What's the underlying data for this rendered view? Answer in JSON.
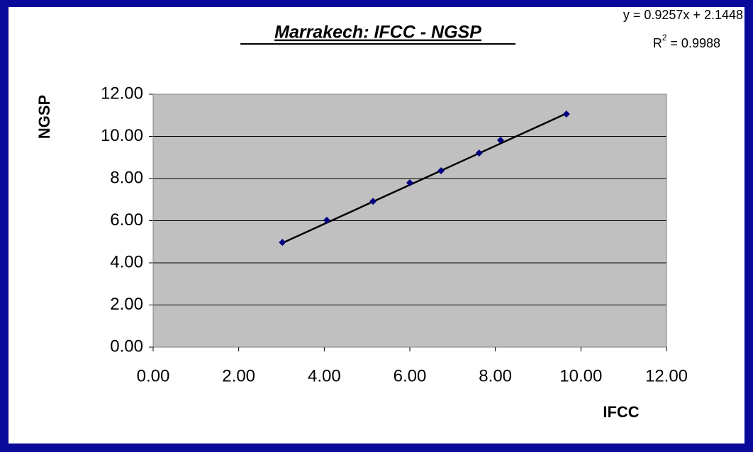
{
  "chart_data": {
    "type": "scatter",
    "title": "Marrakech: IFCC - NGSP",
    "x_label": "IFCC",
    "y_label": "NGSP",
    "x": [
      3.02,
      4.06,
      5.14,
      6.0,
      6.73,
      7.62,
      8.12,
      9.66
    ],
    "series": [
      {
        "color": "#000080",
        "values": [
          4.97,
          6.02,
          6.92,
          7.8,
          8.37,
          9.21,
          9.82,
          11.06
        ]
      }
    ],
    "trendline": {
      "slope": 0.9257,
      "intercept": 2.1448,
      "color": "#000000",
      "equation": "y = 0.9257x + 2.1448",
      "r2": {
        "prefix": "R",
        "sup": "2",
        "rest": " = 0.9988"
      }
    },
    "xlim": [
      0,
      12
    ],
    "ylim": [
      0,
      12
    ],
    "xticks": [
      {
        "value": 0,
        "label": "0.00"
      },
      {
        "value": 2,
        "label": "2.00"
      },
      {
        "value": 4,
        "label": "4.00"
      },
      {
        "value": 6,
        "label": "6.00"
      },
      {
        "value": 8,
        "label": "8.00"
      },
      {
        "value": 10,
        "label": "10.00"
      },
      {
        "value": 12,
        "label": "12.00"
      }
    ],
    "yticks": [
      {
        "value": 0,
        "label": "0.00"
      },
      {
        "value": 2,
        "label": "2.00"
      },
      {
        "value": 4,
        "label": "4.00"
      },
      {
        "value": 6,
        "label": "6.00"
      },
      {
        "value": 8,
        "label": "8.00"
      },
      {
        "value": 10,
        "label": "10.00"
      },
      {
        "value": 12,
        "label": "12.00"
      }
    ],
    "grid": true,
    "plot_background": "#c0c0c0"
  }
}
